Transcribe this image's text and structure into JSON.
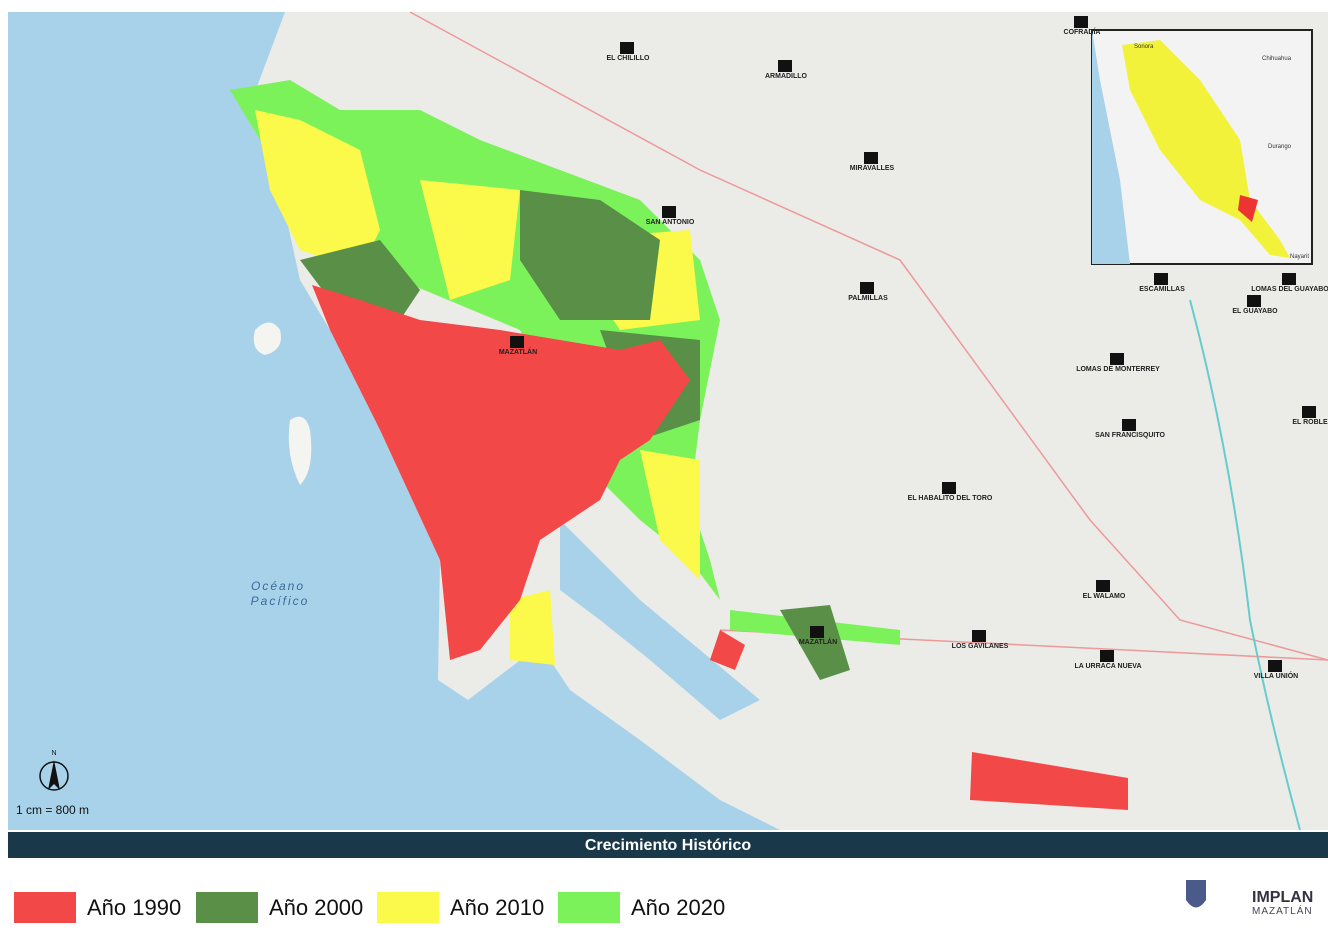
{
  "map": {
    "title": "Crecimiento Histórico",
    "scale": "1 cm = 800 m",
    "north": "N",
    "ocean_label": [
      "Océano",
      "Pacífico"
    ],
    "places": [
      "MAZATLÁN",
      "EL CHILILLO",
      "ARMADILLO",
      "MIRAVALLES",
      "SAN ANTONIO",
      "PALMILLAS",
      "ESCAMILLAS",
      "LOMAS DEL GUAYABO",
      "EL GUAYABO",
      "LOMAS DE MONTERREY",
      "SAN FRANCISQUITO",
      "EL ROBLE",
      "EL HABALITO DEL TORO",
      "EL WALAMO",
      "LOS GAVILANES",
      "LA URRACA NUEVA",
      "VILLA UNIÓN",
      "COFRADÍA",
      "MAZATLÁN"
    ],
    "inset_labels": [
      "Sonora",
      "Chihuahua",
      "Durango",
      "Nayarit"
    ]
  },
  "legend": [
    {
      "label": "Año 1990",
      "color": "#f34848"
    },
    {
      "label": "Año 2000",
      "color": "#5a8f47"
    },
    {
      "label": "Año 2010",
      "color": "#fbf94a"
    },
    {
      "label": "Año 2020",
      "color": "#7cf25a"
    }
  ],
  "logos": {
    "name": "IMPLAN",
    "city": "MAZATLÁN"
  }
}
